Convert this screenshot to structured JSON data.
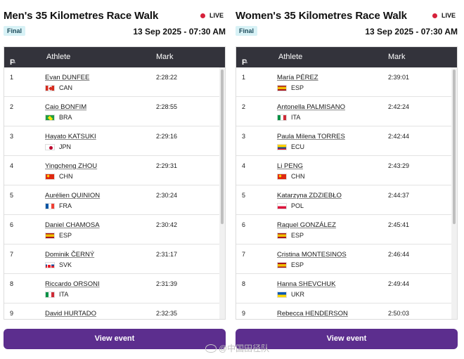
{
  "panels": [
    {
      "title": "Men's 35 Kilometres Race Walk",
      "live_label": "LIVE",
      "badge": "Final",
      "datetime": "13 Sep 2025 - 07:30 AM",
      "columns": {
        "pos": "P",
        "athlete": "Athlete",
        "mark": "Mark"
      },
      "rows": [
        {
          "pos": "1",
          "name": "Evan DUNFEE",
          "country": "CAN",
          "mark": "2:28:22",
          "flag": "f-can"
        },
        {
          "pos": "2",
          "name": "Caio BONFIM",
          "country": "BRA",
          "mark": "2:28:55",
          "flag": "f-bra"
        },
        {
          "pos": "3",
          "name": "Hayato KATSUKI",
          "country": "JPN",
          "mark": "2:29:16",
          "flag": "f-jpn"
        },
        {
          "pos": "4",
          "name": "Yingcheng ZHOU",
          "country": "CHN",
          "mark": "2:29:31",
          "flag": "f-chn"
        },
        {
          "pos": "5",
          "name": "Aurélien QUINION",
          "country": "FRA",
          "mark": "2:30:24",
          "flag": "f-fra"
        },
        {
          "pos": "6",
          "name": "Daniel CHAMOSA",
          "country": "ESP",
          "mark": "2:30:42",
          "flag": "f-esp"
        },
        {
          "pos": "7",
          "name": "Dominik ČERNÝ",
          "country": "SVK",
          "mark": "2:31:17",
          "flag": "f-svk"
        },
        {
          "pos": "8",
          "name": "Riccardo ORSONI",
          "country": "ITA",
          "mark": "2:31:39",
          "flag": "f-ita"
        },
        {
          "pos": "9",
          "name": "David HURTADO",
          "country": "",
          "mark": "2:32:35",
          "flag": "f-ecu"
        }
      ],
      "button_label": "View event"
    },
    {
      "title": "Women's 35 Kilometres Race Walk",
      "live_label": "LIVE",
      "badge": "Final",
      "datetime": "13 Sep 2025 - 07:30 AM",
      "columns": {
        "pos": "P",
        "athlete": "Athlete",
        "mark": "Mark"
      },
      "rows": [
        {
          "pos": "1",
          "name": "María PÉREZ",
          "country": "ESP",
          "mark": "2:39:01",
          "flag": "f-esp"
        },
        {
          "pos": "2",
          "name": "Antonella PALMISANO",
          "country": "ITA",
          "mark": "2:42:24",
          "flag": "f-ita"
        },
        {
          "pos": "3",
          "name": "Paula Milena TORRES",
          "country": "ECU",
          "mark": "2:42:44",
          "flag": "f-ecu"
        },
        {
          "pos": "4",
          "name": "Li PENG",
          "country": "CHN",
          "mark": "2:43:29",
          "flag": "f-chn"
        },
        {
          "pos": "5",
          "name": "Katarzyna ZDZIEBŁO",
          "country": "POL",
          "mark": "2:44:37",
          "flag": "f-pol"
        },
        {
          "pos": "6",
          "name": "Raquel GONZÁLEZ",
          "country": "ESP",
          "mark": "2:45:41",
          "flag": "f-esp"
        },
        {
          "pos": "7",
          "name": "Cristina MONTESINOS",
          "country": "ESP",
          "mark": "2:46:44",
          "flag": "f-esp"
        },
        {
          "pos": "8",
          "name": "Hanna SHEVCHUK",
          "country": "UKR",
          "mark": "2:49:44",
          "flag": "f-ukr"
        },
        {
          "pos": "9",
          "name": "Rebecca HENDERSON",
          "country": "",
          "mark": "2:50:03",
          "flag": "f-gbr"
        }
      ],
      "button_label": "View event"
    }
  ],
  "watermark": "@中国田径队"
}
